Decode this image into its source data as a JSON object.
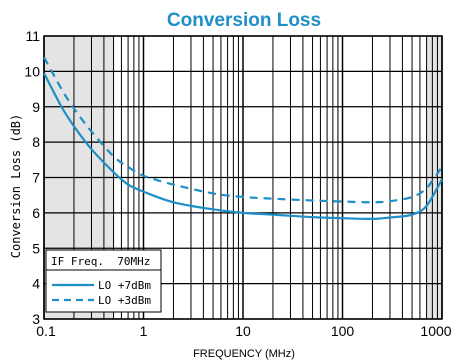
{
  "chart_data": {
    "type": "line",
    "title": "Conversion Loss",
    "xlabel": "FREQUENCY (MHz)",
    "ylabel": "Conversion Loss (dB)",
    "x_scale": "log",
    "xlim": [
      0.1,
      1000
    ],
    "ylim": [
      3,
      11
    ],
    "x_ticks": [
      "0.1",
      "1",
      "10",
      "100",
      "1000"
    ],
    "y_ticks": [
      "3",
      "4",
      "5",
      "6",
      "7",
      "8",
      "9",
      "10",
      "11"
    ],
    "grid": true,
    "shaded_ranges": [
      [
        0.1,
        0.5
      ],
      [
        700,
        1000
      ]
    ],
    "legend": {
      "placement": "bottom-left",
      "header": "IF Freq.  70MHz",
      "entries": [
        "LO +7dBm",
        "LO +3dBm"
      ]
    },
    "series": [
      {
        "name": "LO +7dBm",
        "style": "solid",
        "color": "#1f8fc8",
        "x": [
          0.1,
          0.15,
          0.2,
          0.3,
          0.5,
          0.7,
          1,
          2,
          5,
          10,
          20,
          50,
          100,
          200,
          300,
          500,
          700,
          1000
        ],
        "y": [
          9.95,
          9.0,
          8.45,
          7.8,
          7.15,
          6.8,
          6.6,
          6.3,
          6.1,
          6.0,
          5.95,
          5.88,
          5.85,
          5.83,
          5.87,
          5.95,
          6.2,
          6.95
        ]
      },
      {
        "name": "LO +3dBm",
        "style": "dashed",
        "color": "#1f8fc8",
        "x": [
          0.1,
          0.15,
          0.2,
          0.3,
          0.5,
          0.7,
          1,
          2,
          5,
          10,
          20,
          50,
          100,
          200,
          300,
          500,
          700,
          1000
        ],
        "y": [
          10.4,
          9.5,
          8.95,
          8.3,
          7.6,
          7.3,
          7.05,
          6.8,
          6.55,
          6.45,
          6.4,
          6.35,
          6.32,
          6.3,
          6.33,
          6.45,
          6.7,
          7.3
        ]
      }
    ]
  }
}
